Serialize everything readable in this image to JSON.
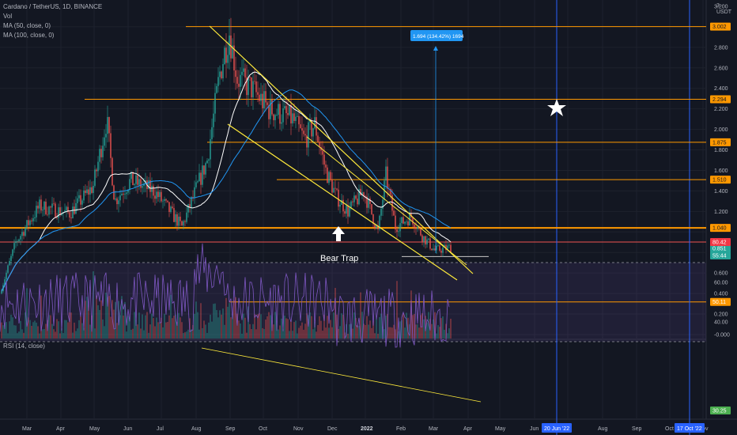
{
  "header": {
    "title": "Cardano / TetherUS, 1D, BINANCE",
    "vol": "Vol",
    "ma50": "MA (50, close, 0)",
    "ma100": "MA (100, close, 0)",
    "rsi": "RSI (14, close)"
  },
  "price_axis": {
    "unit": "USDT",
    "top_digit": "3",
    "ticks": [
      "3.200",
      "2.800",
      "2.600",
      "2.400",
      "2.200",
      "2.000",
      "1.800",
      "1.600",
      "1.400",
      "1.200",
      "0.600",
      "0.400",
      "0.200",
      "-0.000"
    ],
    "tags": [
      {
        "text": "3.002",
        "color": "#ff9800"
      },
      {
        "text": "2.294",
        "color": "#ff9800"
      },
      {
        "text": "1.875",
        "color": "#ff9800"
      },
      {
        "text": "1.510",
        "color": "#ff9800"
      },
      {
        "text": "1.040",
        "color": "#ff9800"
      },
      {
        "text": "0.851",
        "color": "#26a69a"
      },
      {
        "text": "55:44",
        "color": "#26a69a"
      }
    ]
  },
  "rsi_axis": {
    "ticks": [
      "60.00",
      "40.00"
    ],
    "tags": [
      {
        "text": "80.42",
        "color": "#f23645"
      },
      {
        "text": "50.11",
        "color": "#ff9800"
      },
      {
        "text": "30.25",
        "color": "#4caf50"
      }
    ]
  },
  "time_axis": {
    "labels": [
      "Mar",
      "Apr",
      "May",
      "Jun",
      "Jul",
      "Aug",
      "Sep",
      "Oct",
      "Nov",
      "Dec",
      "2022",
      "Feb",
      "Mar",
      "Apr",
      "May",
      "Jun",
      "Jul",
      "Aug",
      "Sep",
      "Oct",
      "Nov"
    ],
    "markers": [
      "20 Jun '22",
      "17 Oct '22"
    ]
  },
  "annotations": {
    "measure_label": "1.694 (134.42%) 1694",
    "bear_trap": "Bear Trap"
  },
  "colors": {
    "background": "#131722",
    "up": "#26a69a",
    "down": "#ef5350",
    "level_line": "#ff9800",
    "channel": "#ffeb3b",
    "ma50": "#ffffff",
    "ma100": "#2196f3",
    "rsi_line": "#7e57c2",
    "marker_line": "#2962ff"
  }
}
